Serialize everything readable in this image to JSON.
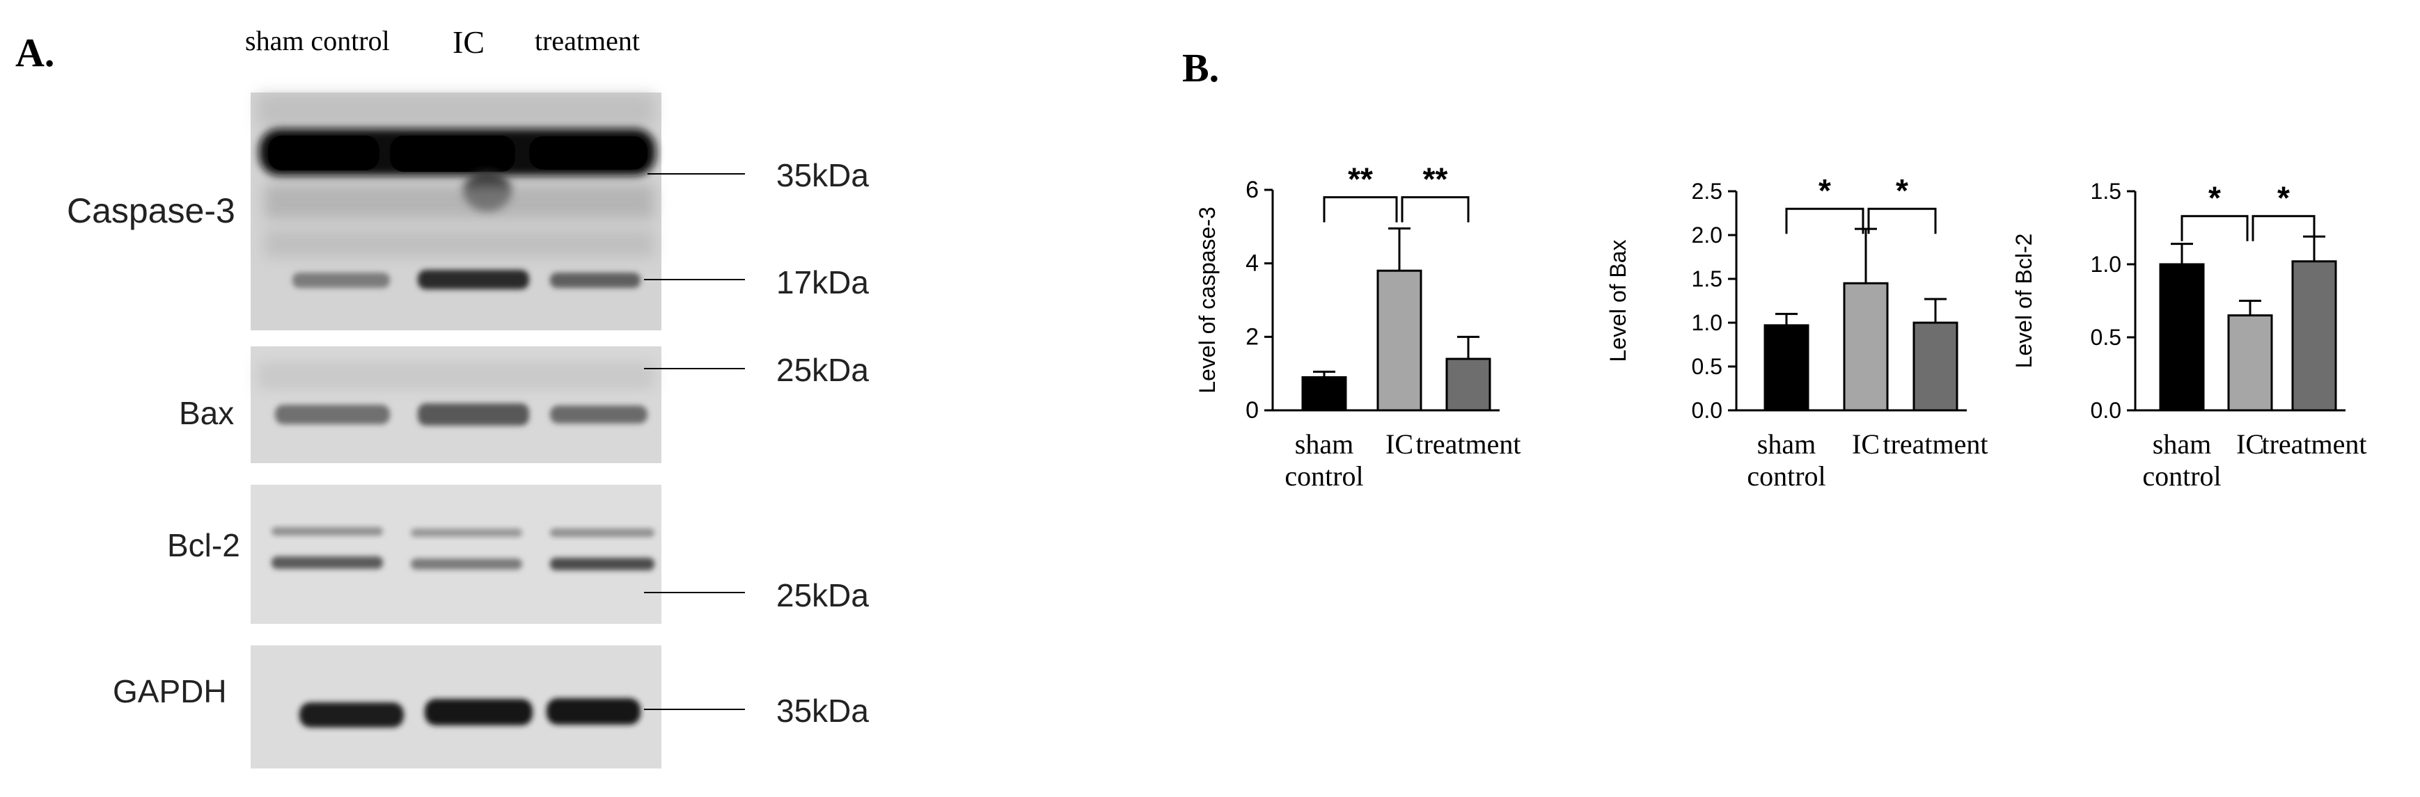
{
  "panel_a": {
    "label": "A.",
    "lanes": [
      "sham control",
      "IC",
      "treatment"
    ],
    "blots": [
      {
        "protein": "Caspase-3",
        "markers": [
          "35kDa",
          "17kDa"
        ]
      },
      {
        "protein": "Bax",
        "markers": [
          "25kDa"
        ]
      },
      {
        "protein": "Bcl-2",
        "markers": [
          "25kDa"
        ]
      },
      {
        "protein": "GAPDH",
        "markers": [
          "35kDa"
        ]
      }
    ]
  },
  "panel_b": {
    "label": "B."
  },
  "colors": {
    "sham": "#000000",
    "ic": "#a6a6a6",
    "treatment": "#6e6e6e"
  },
  "chart_data": [
    {
      "type": "bar",
      "title": "",
      "ylabel": "Level of caspase-3",
      "xlabel": "",
      "categories": [
        "sham control",
        "IC",
        "treatment"
      ],
      "values": [
        0.9,
        3.8,
        1.4
      ],
      "errors": [
        0.15,
        1.15,
        0.6
      ],
      "ylim": [
        0,
        6
      ],
      "yticks": [
        "0",
        "2",
        "4",
        "6"
      ],
      "significance": [
        {
          "from": 0,
          "to": 1,
          "label": "**",
          "level": 5.8
        },
        {
          "from": 1,
          "to": 2,
          "label": "**",
          "level": 5.8
        }
      ]
    },
    {
      "type": "bar",
      "title": "",
      "ylabel": "Level of Bax",
      "xlabel": "",
      "categories": [
        "sham control",
        "IC",
        "treatment"
      ],
      "values": [
        0.97,
        1.45,
        1.0
      ],
      "errors": [
        0.13,
        0.62,
        0.27
      ],
      "ylim": [
        0,
        2.5
      ],
      "yticks": [
        "0.0",
        "0.5",
        "1.0",
        "1.5",
        "2.0",
        "2.5"
      ],
      "significance": [
        {
          "from": 0,
          "to": 1,
          "label": "*",
          "level": 2.3
        },
        {
          "from": 1,
          "to": 2,
          "label": "*",
          "level": 2.3
        }
      ]
    },
    {
      "type": "bar",
      "title": "",
      "ylabel": "Level of Bcl-2",
      "xlabel": "",
      "categories": [
        "sham control",
        "IC",
        "treatment"
      ],
      "values": [
        1.0,
        0.65,
        1.02
      ],
      "errors": [
        0.14,
        0.1,
        0.17
      ],
      "ylim": [
        0,
        1.5
      ],
      "yticks": [
        "0.0",
        "0.5",
        "1.0",
        "1.5"
      ],
      "significance": [
        {
          "from": 0,
          "to": 1,
          "label": "*",
          "level": 1.33
        },
        {
          "from": 1,
          "to": 2,
          "label": "*",
          "level": 1.33
        }
      ]
    }
  ]
}
